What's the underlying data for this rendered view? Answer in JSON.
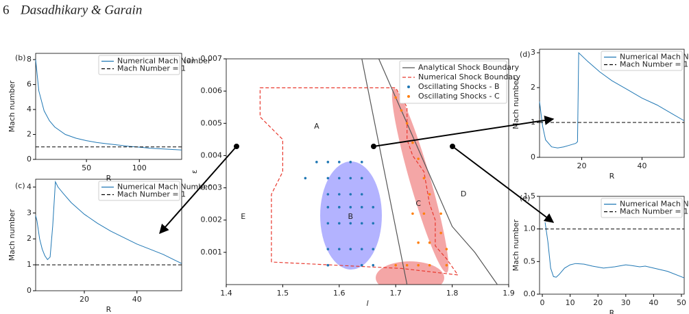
{
  "header": {
    "page": "6",
    "authors": "Dasadhikary & Garain"
  },
  "chart_data": [
    {
      "type": "line",
      "label": "(b)",
      "xlabel": "R",
      "ylabel": "Mach number",
      "xlim": [
        2,
        140
      ],
      "ylim": [
        0,
        8.5
      ],
      "xticks": [
        50,
        100
      ],
      "yticks": [
        0,
        2,
        4,
        6,
        8
      ],
      "legend": "upper right",
      "series": [
        {
          "name": "Numerical Mach Number",
          "color": "#1f77b4",
          "style": "solid",
          "x": [
            2,
            5,
            10,
            15,
            20,
            30,
            40,
            50,
            60,
            70,
            80,
            90,
            100,
            110,
            120,
            130,
            140
          ],
          "values": [
            8,
            5.5,
            3.9,
            3.1,
            2.6,
            2.0,
            1.7,
            1.5,
            1.35,
            1.25,
            1.15,
            1.05,
            0.98,
            0.9,
            0.85,
            0.8,
            0.75
          ]
        },
        {
          "name": "Mach Number = 1",
          "color": "#000000",
          "style": "dashed",
          "x": [
            2,
            140
          ],
          "values": [
            1,
            1
          ]
        }
      ]
    },
    {
      "type": "line",
      "label": "(c)",
      "xlabel": "R",
      "ylabel": "Mach number",
      "xlim": [
        1.5,
        57
      ],
      "ylim": [
        0,
        4.3
      ],
      "xticks": [
        20,
        40
      ],
      "yticks": [
        0,
        1,
        2,
        3,
        4
      ],
      "legend": "upper right",
      "series": [
        {
          "name": "Numerical Mach Number",
          "color": "#1f77b4",
          "style": "solid",
          "x": [
            1.5,
            2,
            3,
            4,
            5,
            6,
            7,
            8,
            9,
            10,
            12,
            15,
            20,
            25,
            30,
            35,
            40,
            45,
            50,
            55,
            57
          ],
          "values": [
            2.9,
            2.7,
            2.0,
            1.6,
            1.35,
            1.2,
            1.3,
            2.5,
            4.2,
            4.0,
            3.75,
            3.4,
            2.95,
            2.6,
            2.3,
            2.05,
            1.8,
            1.6,
            1.4,
            1.15,
            1.05
          ]
        },
        {
          "name": "Mach Number = 1",
          "color": "#000000",
          "style": "dashed",
          "x": [
            1.5,
            57
          ],
          "values": [
            1,
            1
          ]
        }
      ]
    },
    {
      "type": "scatter",
      "label": "(a)",
      "xlabel": "l",
      "ylabel": "ε",
      "xlim": [
        1.4,
        1.9
      ],
      "ylim": [
        0,
        0.007
      ],
      "xticks": [
        1.4,
        1.5,
        1.6,
        1.7,
        1.8,
        1.9
      ],
      "yticks": [
        0.001,
        0.002,
        0.003,
        0.004,
        0.005,
        0.006,
        0.007
      ],
      "legend": "upper right",
      "annotations": [
        "A",
        "B",
        "C",
        "D",
        "E"
      ],
      "series": [
        {
          "name": "Analytical Shock Boundary",
          "color": "#555555",
          "style": "solid",
          "x": [
            1.64,
            1.72,
            null,
            1.67,
            1.8,
            1.84,
            1.88
          ],
          "values": [
            0.007,
            0,
            null,
            0.007,
            0.0018,
            0.001,
            0
          ]
        },
        {
          "name": "Numerical Shock Boundary",
          "color": "#e8382d",
          "style": "dashed",
          "x": [
            1.48,
            1.48,
            1.5,
            1.5,
            1.46,
            1.46,
            1.7,
            1.72,
            1.72,
            1.73,
            1.75,
            1.76,
            1.77,
            1.77,
            1.79,
            1.81,
            1.71,
            1.48
          ],
          "values": [
            0.0007,
            0.0028,
            0.0035,
            0.0045,
            0.0052,
            0.0061,
            0.0061,
            0.0055,
            0.0045,
            0.004,
            0.0035,
            0.0025,
            0.002,
            0.0012,
            0.0008,
            0.0003,
            0.0005,
            0.0007
          ]
        },
        {
          "name": "Oscillating Shocks - B",
          "color": "#1f77b4",
          "style": "markers",
          "x": [
            1.56,
            1.58,
            1.6,
            1.62,
            1.64,
            1.54,
            1.58,
            1.6,
            1.62,
            1.64,
            1.58,
            1.6,
            1.62,
            1.64,
            1.58,
            1.6,
            1.62,
            1.64,
            1.66,
            1.58,
            1.6,
            1.62,
            1.64,
            1.66,
            1.58,
            1.6,
            1.62,
            1.64,
            1.66,
            1.58,
            1.64,
            1.66
          ],
          "values": [
            0.0038,
            0.0038,
            0.0038,
            0.0038,
            0.0038,
            0.0033,
            0.0033,
            0.0033,
            0.0033,
            0.0033,
            0.0028,
            0.0028,
            0.0028,
            0.0028,
            0.0024,
            0.0024,
            0.0024,
            0.0024,
            0.0024,
            0.0019,
            0.0019,
            0.0019,
            0.0019,
            0.0019,
            0.0011,
            0.0011,
            0.0011,
            0.0011,
            0.0011,
            0.0006,
            0.0006,
            0.0006
          ]
        },
        {
          "name": "Oscillating Shocks - C",
          "color": "#ff7f0e",
          "style": "markers",
          "x": [
            1.7,
            1.71,
            1.72,
            1.73,
            1.74,
            1.75,
            1.76,
            1.78,
            1.78,
            1.79,
            1.79,
            1.7,
            1.72,
            1.74,
            1.76,
            1.73,
            1.75,
            1.74,
            1.76
          ],
          "values": [
            0.0058,
            0.0054,
            0.005,
            0.0044,
            0.0039,
            0.0033,
            0.0028,
            0.0022,
            0.0016,
            0.0011,
            0.0006,
            0.0006,
            0.0006,
            0.0006,
            0.0006,
            0.0022,
            0.0022,
            0.0013,
            0.0013
          ]
        }
      ]
    },
    {
      "type": "line",
      "label": "(d)",
      "xlabel": "R",
      "ylabel": "Mach number",
      "xlim": [
        6,
        54
      ],
      "ylim": [
        0,
        3.1
      ],
      "xticks": [
        20,
        40
      ],
      "yticks": [
        0,
        1,
        2,
        3
      ],
      "legend": "upper right",
      "series": [
        {
          "name": "Numerical Mach Number",
          "color": "#1f77b4",
          "style": "solid",
          "x": [
            6,
            7,
            8,
            10,
            12,
            14,
            16,
            18,
            18.6,
            19,
            22,
            26,
            30,
            35,
            40,
            45,
            50,
            54
          ],
          "values": [
            1.6,
            0.9,
            0.5,
            0.3,
            0.27,
            0.3,
            0.35,
            0.4,
            0.45,
            3.0,
            2.75,
            2.45,
            2.2,
            1.95,
            1.7,
            1.5,
            1.25,
            1.05
          ]
        },
        {
          "name": "Mach Number = 1",
          "color": "#000000",
          "style": "dashed",
          "x": [
            6,
            54
          ],
          "values": [
            1,
            1
          ]
        }
      ]
    },
    {
      "type": "line",
      "label": "(e)",
      "xlabel": "R",
      "ylabel": "Mach number",
      "xlim": [
        -1,
        51
      ],
      "ylim": [
        0,
        1.5
      ],
      "xticks": [
        0,
        10,
        20,
        30,
        40,
        50
      ],
      "yticks": [
        {
          "value": 0,
          "label": "0.0"
        },
        {
          "value": 0.5,
          "label": "0.5"
        },
        {
          "value": 1,
          "label": "1.0"
        },
        {
          "value": 1.5,
          "label": "1.5"
        }
      ],
      "legend": "upper right",
      "series": [
        {
          "name": "Numerical Mach Number",
          "color": "#1f77b4",
          "style": "solid",
          "x": [
            1,
            2,
            3,
            4,
            5,
            6,
            8,
            10,
            12,
            15,
            18,
            22,
            26,
            30,
            32,
            35,
            37,
            40,
            45,
            51
          ],
          "values": [
            1.1,
            0.8,
            0.4,
            0.27,
            0.26,
            0.3,
            0.4,
            0.45,
            0.47,
            0.46,
            0.43,
            0.4,
            0.42,
            0.45,
            0.44,
            0.42,
            0.43,
            0.4,
            0.35,
            0.25
          ]
        },
        {
          "name": "Mach Number = 1",
          "color": "#000000",
          "style": "dashed",
          "x": [
            -1,
            51
          ],
          "values": [
            1,
            1
          ]
        }
      ]
    }
  ]
}
